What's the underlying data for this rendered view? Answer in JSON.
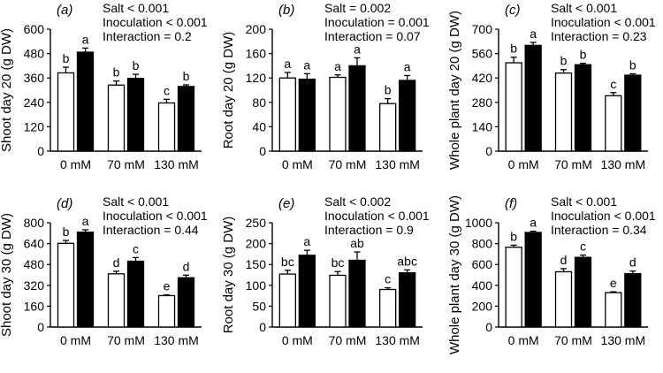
{
  "chart_data": [
    {
      "type": "bar",
      "panel_label": "(a)",
      "stats": [
        "Salt < 0.001",
        "Inoculation < 0.001",
        "Interaction = 0.2"
      ],
      "ylabel": "Shoot day 20 (g DW)",
      "categories": [
        "0 mM",
        "70 mM",
        "130 mM"
      ],
      "ylim": [
        0,
        600
      ],
      "yticks": [
        0,
        120,
        240,
        360,
        480,
        600
      ],
      "series": [
        {
          "values": [
            385,
            325,
            237
          ],
          "errors": [
            28,
            20,
            18
          ],
          "letters": [
            "b",
            "b",
            "c"
          ],
          "fill": "#ffffff"
        },
        {
          "values": [
            487,
            358,
            318
          ],
          "errors": [
            20,
            20,
            8
          ],
          "letters": [
            "a",
            "b",
            "b"
          ],
          "fill": "#000000"
        }
      ]
    },
    {
      "type": "bar",
      "panel_label": "(b)",
      "stats": [
        "Salt = 0.002",
        "Inoculation = 0.001",
        "Interaction = 0.07"
      ],
      "ylabel": "Root day 20 (g DW)",
      "categories": [
        "0 mM",
        "70 mM",
        "130 mM"
      ],
      "ylim": [
        0,
        200
      ],
      "yticks": [
        0,
        40,
        80,
        120,
        160,
        200
      ],
      "series": [
        {
          "values": [
            120,
            121,
            78
          ],
          "errors": [
            9,
            4,
            8
          ],
          "letters": [
            "a",
            "a",
            "b"
          ],
          "fill": "#ffffff"
        },
        {
          "values": [
            118,
            140,
            116
          ],
          "errors": [
            9,
            13,
            8
          ],
          "letters": [
            "a",
            "a",
            "a"
          ],
          "fill": "#000000"
        }
      ]
    },
    {
      "type": "bar",
      "panel_label": "(c)",
      "stats": [
        "Salt < 0.001",
        "Inoculation < 0.001",
        "Interaction = 0.23"
      ],
      "ylabel": "Whole plant day 20 (g DW)",
      "categories": [
        "0 mM",
        "70 mM",
        "130 mM"
      ],
      "ylim": [
        0,
        700
      ],
      "yticks": [
        0,
        140,
        280,
        420,
        560,
        700
      ],
      "series": [
        {
          "values": [
            507,
            448,
            318
          ],
          "errors": [
            32,
            20,
            18
          ],
          "letters": [
            "b",
            "b",
            "c"
          ],
          "fill": "#ffffff"
        },
        {
          "values": [
            607,
            496,
            436
          ],
          "errors": [
            17,
            8,
            8
          ],
          "letters": [
            "a",
            "b",
            "b"
          ],
          "fill": "#000000"
        }
      ]
    },
    {
      "type": "bar",
      "panel_label": "(d)",
      "stats": [
        "Salt < 0.001",
        "Inoculation < 0.001",
        "Interaction = 0.44"
      ],
      "ylabel": "Shoot day 30 (g DW)",
      "categories": [
        "0 mM",
        "70 mM",
        "130 mM"
      ],
      "ylim": [
        0,
        800
      ],
      "yticks": [
        0,
        160,
        320,
        480,
        640,
        800
      ],
      "series": [
        {
          "values": [
            642,
            408,
            241
          ],
          "errors": [
            22,
            20,
            6
          ],
          "letters": [
            "b",
            "d",
            "e"
          ],
          "fill": "#ffffff"
        },
        {
          "values": [
            728,
            505,
            378
          ],
          "errors": [
            18,
            28,
            20
          ],
          "letters": [
            "a",
            "c",
            "d"
          ],
          "fill": "#000000"
        }
      ]
    },
    {
      "type": "bar",
      "panel_label": "(e)",
      "stats": [
        "Salt < 0.002",
        "Inoculation < 0.001",
        "Interaction = 0.9"
      ],
      "ylabel": "Root day 30 (g DW)",
      "categories": [
        "0 mM",
        "70 mM",
        "130 mM"
      ],
      "ylim": [
        0,
        250
      ],
      "yticks": [
        0,
        50,
        100,
        150,
        200,
        250
      ],
      "series": [
        {
          "values": [
            127,
            124,
            90
          ],
          "errors": [
            9,
            9,
            4
          ],
          "letters": [
            "bc",
            "bc",
            "c"
          ],
          "fill": "#ffffff"
        },
        {
          "values": [
            172,
            160,
            130
          ],
          "errors": [
            12,
            20,
            7
          ],
          "letters": [
            "a",
            "ab",
            "abc"
          ],
          "fill": "#000000"
        }
      ]
    },
    {
      "type": "bar",
      "panel_label": "(f)",
      "stats": [
        "Salt < 0.001",
        "Inoculation < 0.001",
        "Interaction = 0.34"
      ],
      "ylabel": "Whole plant day 30 (g DW)",
      "categories": [
        "0 mM",
        "70 mM",
        "130 mM"
      ],
      "ylim": [
        0,
        1000
      ],
      "yticks": [
        0,
        200,
        400,
        600,
        800,
        1000
      ],
      "series": [
        {
          "values": [
            765,
            530,
            330
          ],
          "errors": [
            20,
            30,
            8
          ],
          "letters": [
            "b",
            "d",
            "e"
          ],
          "fill": "#ffffff"
        },
        {
          "values": [
            907,
            668,
            512
          ],
          "errors": [
            12,
            22,
            25
          ],
          "letters": [
            "a",
            "c",
            "d"
          ],
          "fill": "#000000"
        }
      ]
    }
  ]
}
